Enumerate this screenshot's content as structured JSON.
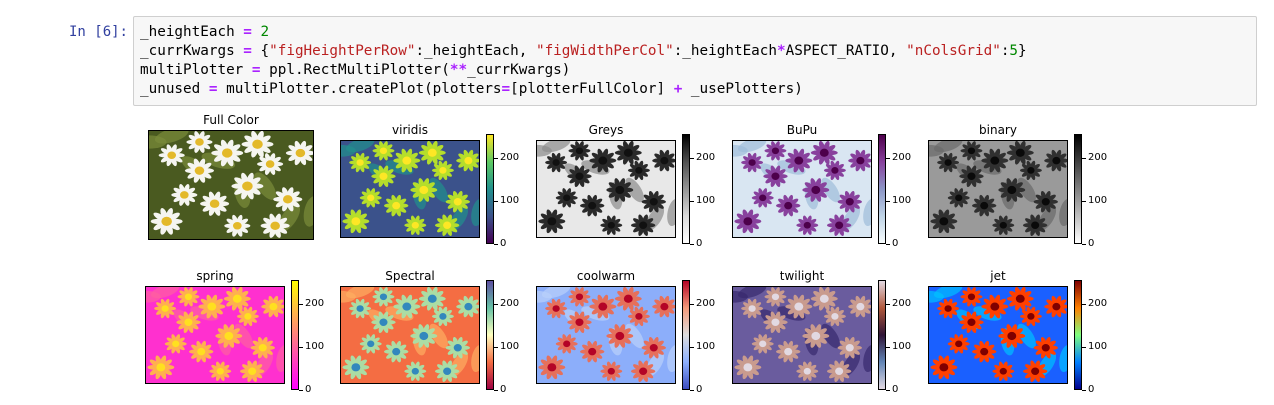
{
  "cell": {
    "prompt": "In [6]:",
    "lines": [
      [
        {
          "t": "_heightEach "
        },
        {
          "t": "=",
          "c": "eq"
        },
        {
          "t": " "
        },
        {
          "t": "2",
          "c": "num"
        }
      ],
      [
        {
          "t": "_currKwargs "
        },
        {
          "t": "=",
          "c": "eq"
        },
        {
          "t": " {"
        },
        {
          "t": "\"figHeightPerRow\"",
          "c": "str"
        },
        {
          "t": ":_heightEach, "
        },
        {
          "t": "\"figWidthPerCol\"",
          "c": "str"
        },
        {
          "t": ":_heightEach"
        },
        {
          "t": "*",
          "c": "op"
        },
        {
          "t": "ASPECT_RATIO, "
        },
        {
          "t": "\"nColsGrid\"",
          "c": "str"
        },
        {
          "t": ":"
        },
        {
          "t": "5",
          "c": "num"
        },
        {
          "t": "}"
        }
      ],
      [
        {
          "t": "multiPlotter "
        },
        {
          "t": "=",
          "c": "eq"
        },
        {
          "t": " ppl.RectMultiPlotter("
        },
        {
          "t": "**",
          "c": "op"
        },
        {
          "t": "_currKwargs)"
        }
      ],
      [
        {
          "t": "_unused "
        },
        {
          "t": "=",
          "c": "eq"
        },
        {
          "t": " multiPlotter.createPlot(plotters"
        },
        {
          "t": "=",
          "c": "eq"
        },
        {
          "t": "[plotterFullColor] "
        },
        {
          "t": "+",
          "c": "op"
        },
        {
          "t": " _usePlotters)"
        }
      ]
    ]
  },
  "panels": [
    {
      "title": "Full Color",
      "cmap": "fullcolor",
      "colorbar": false
    },
    {
      "title": "viridis",
      "cmap": "viridis",
      "colorbar": true
    },
    {
      "title": "Greys",
      "cmap": "Greys",
      "colorbar": true
    },
    {
      "title": "BuPu",
      "cmap": "BuPu",
      "colorbar": true
    },
    {
      "title": "binary",
      "cmap": "binary",
      "colorbar": true
    },
    {
      "title": "spring",
      "cmap": "spring",
      "colorbar": true
    },
    {
      "title": "Spectral",
      "cmap": "Spectral",
      "colorbar": true
    },
    {
      "title": "coolwarm",
      "cmap": "coolwarm",
      "colorbar": true
    },
    {
      "title": "twilight",
      "cmap": "twilight",
      "colorbar": true
    },
    {
      "title": "jet",
      "cmap": "jet",
      "colorbar": true
    }
  ],
  "colorbar_ticks": [
    "0",
    "100",
    "200"
  ],
  "colorbar_range": [
    0,
    255
  ],
  "cmaps": {
    "viridis": {
      "bg": "#3b528b",
      "flower": "#b5de2b",
      "center": "#fde725",
      "leaf": "#21908d",
      "stops": [
        "#440154",
        "#3b528b",
        "#21908d",
        "#5dc963",
        "#fde725"
      ]
    },
    "Greys": {
      "bg": "#e8e8e8",
      "flower": "#2a2a2a",
      "center": "#111111",
      "leaf": "#8c8c8c",
      "stops": [
        "#ffffff",
        "#d9d9d9",
        "#969696",
        "#525252",
        "#000000"
      ]
    },
    "BuPu": {
      "bg": "#d9e6f2",
      "flower": "#88419d",
      "center": "#4d004b",
      "leaf": "#9ebcda",
      "stops": [
        "#f7fcfd",
        "#bfd3e6",
        "#8c96c6",
        "#88419d",
        "#4d004b"
      ]
    },
    "binary": {
      "bg": "#9a9a9a",
      "flower": "#303030",
      "center": "#0a0a0a",
      "leaf": "#6a6a6a",
      "stops": [
        "#ffffff",
        "#bfbfbf",
        "#808080",
        "#404040",
        "#000000"
      ]
    },
    "spring": {
      "bg": "#ff30cf",
      "flower": "#ffb04f",
      "center": "#ffe01f",
      "leaf": "#ff60a0",
      "stops": [
        "#ff00ff",
        "#ff40bf",
        "#ff807f",
        "#ffbf40",
        "#ffff00"
      ]
    },
    "Spectral": {
      "bg": "#f46d43",
      "flower": "#abdda4",
      "center": "#3288bd",
      "leaf": "#fdae61",
      "stops": [
        "#9e0142",
        "#f46d43",
        "#ffffbf",
        "#66c2a5",
        "#5e4fa2"
      ]
    },
    "coolwarm": {
      "bg": "#8caefa",
      "flower": "#e6705b",
      "center": "#b40426",
      "leaf": "#b9d0f9",
      "stops": [
        "#3b4cc0",
        "#8db0fe",
        "#dddddd",
        "#f49a7b",
        "#b40426"
      ]
    },
    "twilight": {
      "bg": "#6a5c9e",
      "flower": "#c99b8e",
      "center": "#e2d9e2",
      "leaf": "#38296e",
      "stops": [
        "#e2d9e2",
        "#6285b6",
        "#2f1436",
        "#b0573b",
        "#e2d9e2"
      ]
    },
    "jet": {
      "bg": "#1a60ff",
      "flower": "#ff4000",
      "center": "#800000",
      "leaf": "#00c0ff",
      "stops": [
        "#00008f",
        "#0080ff",
        "#80ff80",
        "#ff8000",
        "#800000"
      ]
    },
    "fullcolor": {
      "bg": "#4a5a20",
      "flower": "#f5f5f0",
      "center": "#e3b92a",
      "leaf": "#7a8c3a"
    }
  }
}
